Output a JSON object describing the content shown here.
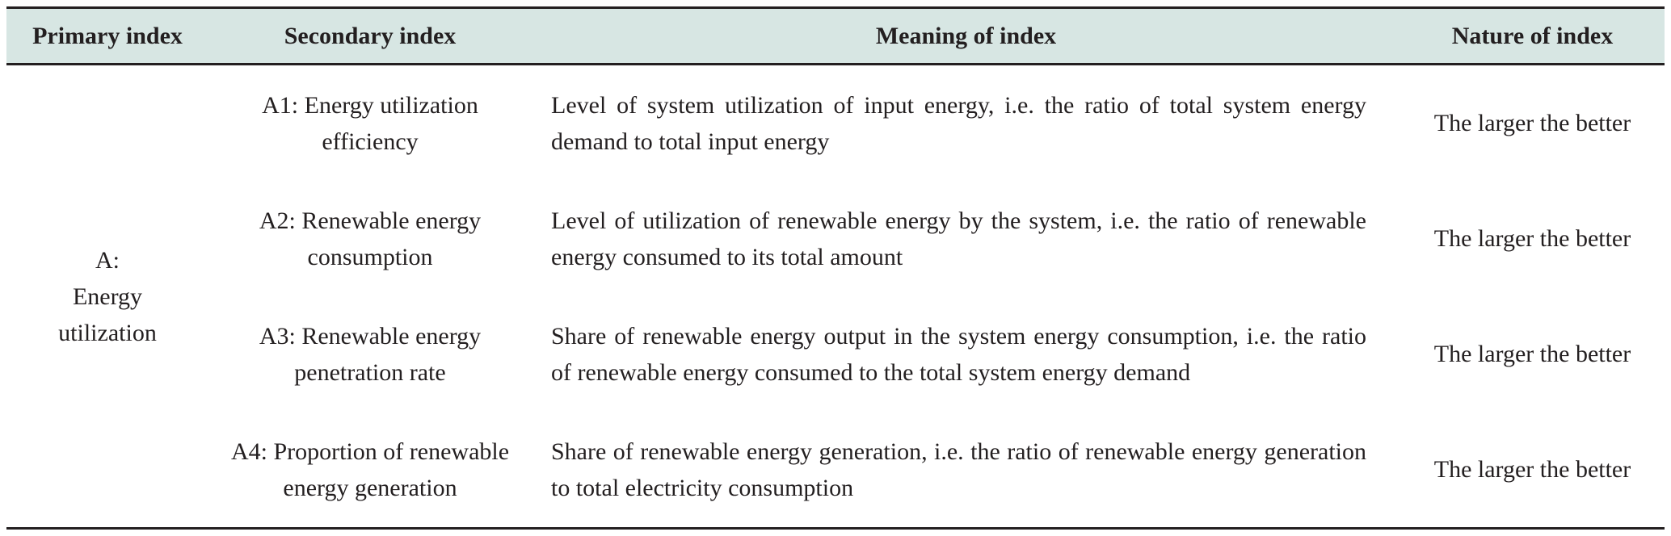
{
  "table": {
    "headers": {
      "primary": "Primary index",
      "secondary": "Secondary index",
      "meaning": "Meaning of index",
      "nature": "Nature of index"
    },
    "primary_group": {
      "line1": "A:",
      "line2": "Energy",
      "line3": "utilization"
    },
    "rows": [
      {
        "secondary_line1": "A1: Energy utilization",
        "secondary_line2": "efficiency",
        "meaning": "Level of system utilization of input energy, i.e. the ratio of total system energy demand to total input energy",
        "nature": "The larger the better"
      },
      {
        "secondary_line1": "A2: Renewable energy",
        "secondary_line2": "consumption",
        "meaning": "Level of utilization of renewable energy by the system, i.e. the ratio of renewable energy consumed to its total amount",
        "nature": "The larger the better"
      },
      {
        "secondary_line1": "A3: Renewable energy",
        "secondary_line2": "penetration rate",
        "meaning": "Share of renewable energy output in the system energy consumption, i.e. the ratio of renewable energy consumed to the total system energy demand",
        "nature": "The larger the better"
      },
      {
        "secondary_line1": "A4: Proportion of renewable",
        "secondary_line2": "energy generation",
        "meaning": "Share of renewable energy generation, i.e. the ratio of renewable energy generation to total electricity consumption",
        "nature": "The larger the better"
      }
    ]
  }
}
